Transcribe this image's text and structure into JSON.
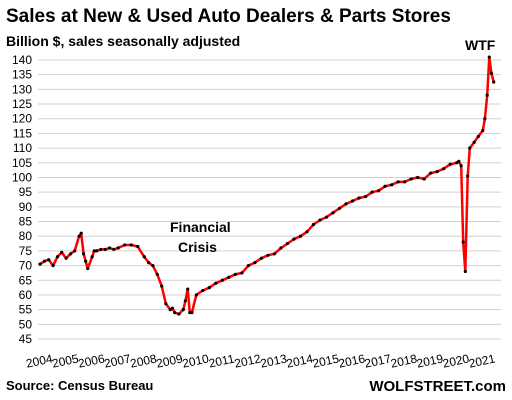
{
  "chart_data": {
    "type": "line",
    "title": "Sales at New & Used Auto Dealers & Parts Stores",
    "subtitle": "Billion $, sales seasonally adjusted",
    "ylim": [
      45,
      140
    ],
    "y_ticks": [
      45,
      50,
      55,
      60,
      65,
      70,
      75,
      80,
      85,
      90,
      95,
      100,
      105,
      110,
      115,
      120,
      125,
      130,
      135,
      140
    ],
    "x_tick_labels": [
      "2004",
      "2005",
      "2006",
      "2007",
      "2008",
      "2009",
      "2010",
      "2011",
      "2012",
      "2013",
      "2014",
      "2015",
      "2016",
      "2017",
      "2018",
      "2019",
      "2020",
      "2021"
    ],
    "grid": "horizontal",
    "colors": {
      "line": "#ff0000",
      "markers": "#000000",
      "grid": "#d0d0d0"
    },
    "x": [
      2004.0,
      2004.17,
      2004.33,
      2004.5,
      2004.67,
      2004.83,
      2005.0,
      2005.17,
      2005.33,
      2005.5,
      2005.58,
      2005.67,
      2005.75,
      2005.83,
      2006.0,
      2006.08,
      2006.17,
      2006.33,
      2006.5,
      2006.67,
      2006.83,
      2007.0,
      2007.25,
      2007.5,
      2007.75,
      2008.0,
      2008.17,
      2008.33,
      2008.5,
      2008.67,
      2008.83,
      2009.0,
      2009.08,
      2009.17,
      2009.33,
      2009.5,
      2009.58,
      2009.67,
      2009.75,
      2009.83,
      2010.0,
      2010.25,
      2010.5,
      2010.75,
      2011.0,
      2011.25,
      2011.5,
      2011.75,
      2012.0,
      2012.25,
      2012.5,
      2012.75,
      2013.0,
      2013.25,
      2013.5,
      2013.75,
      2014.0,
      2014.25,
      2014.5,
      2014.75,
      2015.0,
      2015.25,
      2015.5,
      2015.75,
      2016.0,
      2016.25,
      2016.5,
      2016.75,
      2017.0,
      2017.25,
      2017.5,
      2017.75,
      2018.0,
      2018.25,
      2018.5,
      2018.75,
      2019.0,
      2019.25,
      2019.5,
      2019.75,
      2020.0,
      2020.08,
      2020.17,
      2020.25,
      2020.33,
      2020.42,
      2020.5,
      2020.67,
      2020.83,
      2021.0,
      2021.08,
      2021.17,
      2021.25,
      2021.33,
      2021.42
    ],
    "values": [
      70.5,
      71.5,
      72,
      70,
      73,
      74.5,
      72.5,
      74,
      75,
      80,
      81,
      74,
      71.5,
      69,
      73,
      75,
      75,
      75.5,
      75.5,
      76,
      75.5,
      76,
      77,
      77,
      76.5,
      73,
      71,
      70,
      67,
      63,
      57,
      55,
      55.5,
      54,
      53.5,
      55,
      58,
      62,
      54,
      54,
      60,
      61.5,
      62.5,
      64,
      65,
      66,
      67,
      67.5,
      70,
      71,
      72.5,
      73.5,
      74,
      76,
      77.5,
      79,
      80,
      81.5,
      84,
      85.5,
      86.5,
      88,
      89.5,
      91,
      92,
      93,
      93.5,
      95,
      95.5,
      97,
      97.5,
      98.5,
      98.5,
      99.5,
      100,
      99.5,
      101.5,
      102,
      103,
      104.5,
      105,
      105.5,
      104,
      78,
      68,
      100.5,
      110,
      112,
      114,
      116,
      120,
      128,
      141,
      135.5,
      132.5
    ],
    "annotations": [
      "Financial Crisis",
      "WTF"
    ],
    "source": "Source: Census Bureau",
    "brand": "WOLFSTREET.com"
  }
}
